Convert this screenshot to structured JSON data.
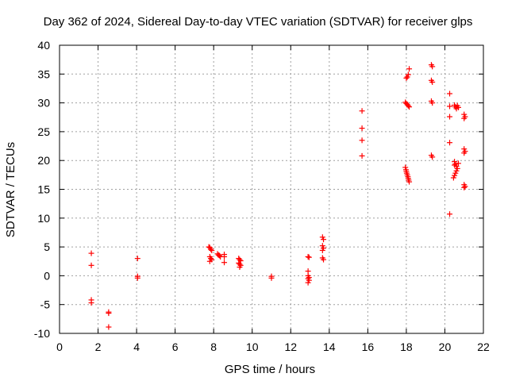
{
  "chart_data": {
    "type": "scatter",
    "title": "Day 362 of 2024, Sidereal Day-to-day VTEC variation (SDTVAR) for receiver glps",
    "xlabel": "GPS time / hours",
    "ylabel": "SDTVAR / TECUs",
    "xlim": [
      0,
      22
    ],
    "ylim": [
      -10,
      40
    ],
    "xticks": [
      0,
      2,
      4,
      6,
      8,
      10,
      12,
      14,
      16,
      18,
      20,
      22
    ],
    "yticks": [
      -10,
      -5,
      0,
      5,
      10,
      15,
      20,
      25,
      30,
      35,
      40
    ],
    "grid": true,
    "marker": "+",
    "color": "#ff0000",
    "series": [
      {
        "name": "SDTVAR",
        "points": [
          [
            1.65,
            3.9
          ],
          [
            1.65,
            1.8
          ],
          [
            1.65,
            -4.2
          ],
          [
            1.65,
            -4.7
          ],
          [
            2.55,
            -6.3
          ],
          [
            2.55,
            -6.5
          ],
          [
            2.55,
            -8.9
          ],
          [
            4.05,
            3.0
          ],
          [
            4.05,
            -0.1
          ],
          [
            4.05,
            -0.4
          ],
          [
            7.75,
            5.0
          ],
          [
            7.8,
            4.9
          ],
          [
            7.85,
            4.6
          ],
          [
            7.9,
            4.4
          ],
          [
            7.8,
            3.3
          ],
          [
            7.85,
            3.0
          ],
          [
            7.9,
            2.8
          ],
          [
            7.8,
            2.5
          ],
          [
            8.2,
            3.8
          ],
          [
            8.25,
            3.6
          ],
          [
            8.3,
            3.5
          ],
          [
            8.35,
            3.3
          ],
          [
            8.55,
            3.7
          ],
          [
            8.55,
            3.3
          ],
          [
            8.55,
            2.3
          ],
          [
            9.3,
            3.0
          ],
          [
            9.35,
            2.8
          ],
          [
            9.4,
            2.6
          ],
          [
            9.3,
            2.2
          ],
          [
            9.35,
            2.0
          ],
          [
            9.4,
            1.8
          ],
          [
            9.35,
            1.5
          ],
          [
            11.0,
            -0.1
          ],
          [
            11.0,
            -0.4
          ],
          [
            12.9,
            3.3
          ],
          [
            12.95,
            3.2
          ],
          [
            12.9,
            0.8
          ],
          [
            12.9,
            0.0
          ],
          [
            12.95,
            -0.3
          ],
          [
            12.9,
            -0.5
          ],
          [
            12.95,
            -0.8
          ],
          [
            12.9,
            -1.2
          ],
          [
            13.65,
            6.7
          ],
          [
            13.7,
            6.3
          ],
          [
            13.65,
            5.2
          ],
          [
            13.7,
            4.8
          ],
          [
            13.65,
            4.4
          ],
          [
            13.65,
            3.1
          ],
          [
            13.7,
            2.8
          ],
          [
            15.7,
            28.6
          ],
          [
            15.7,
            25.6
          ],
          [
            15.7,
            23.5
          ],
          [
            15.7,
            20.8
          ],
          [
            18.15,
            35.9
          ],
          [
            18.1,
            34.9
          ],
          [
            18.05,
            34.5
          ],
          [
            18.0,
            34.3
          ],
          [
            17.95,
            30.1
          ],
          [
            18.0,
            29.9
          ],
          [
            18.05,
            29.7
          ],
          [
            18.1,
            29.5
          ],
          [
            18.15,
            29.3
          ],
          [
            17.95,
            18.8
          ],
          [
            17.98,
            18.4
          ],
          [
            18.0,
            18.1
          ],
          [
            18.02,
            17.8
          ],
          [
            18.05,
            17.5
          ],
          [
            18.08,
            17.2
          ],
          [
            18.1,
            16.9
          ],
          [
            18.12,
            16.6
          ],
          [
            18.15,
            16.3
          ],
          [
            19.3,
            36.6
          ],
          [
            19.35,
            36.3
          ],
          [
            19.3,
            33.9
          ],
          [
            19.35,
            33.6
          ],
          [
            19.3,
            30.3
          ],
          [
            19.35,
            30.0
          ],
          [
            19.3,
            20.9
          ],
          [
            19.35,
            20.6
          ],
          [
            20.25,
            31.6
          ],
          [
            20.25,
            29.4
          ],
          [
            20.25,
            27.6
          ],
          [
            20.25,
            23.1
          ],
          [
            20.25,
            10.7
          ],
          [
            20.5,
            29.6
          ],
          [
            20.55,
            29.3
          ],
          [
            20.6,
            29.0
          ],
          [
            20.65,
            29.5
          ],
          [
            20.7,
            29.2
          ],
          [
            20.5,
            19.8
          ],
          [
            20.55,
            19.4
          ],
          [
            20.6,
            19.0
          ],
          [
            20.65,
            18.6
          ],
          [
            20.6,
            18.2
          ],
          [
            20.55,
            17.8
          ],
          [
            20.5,
            17.4
          ],
          [
            20.45,
            17.0
          ],
          [
            20.5,
            19.2
          ],
          [
            20.7,
            19.5
          ],
          [
            21.0,
            28.0
          ],
          [
            21.05,
            27.6
          ],
          [
            21.0,
            27.3
          ],
          [
            21.0,
            22.0
          ],
          [
            21.05,
            21.6
          ],
          [
            21.0,
            21.3
          ],
          [
            21.0,
            15.8
          ],
          [
            21.05,
            15.5
          ],
          [
            21.0,
            15.3
          ]
        ]
      }
    ]
  }
}
